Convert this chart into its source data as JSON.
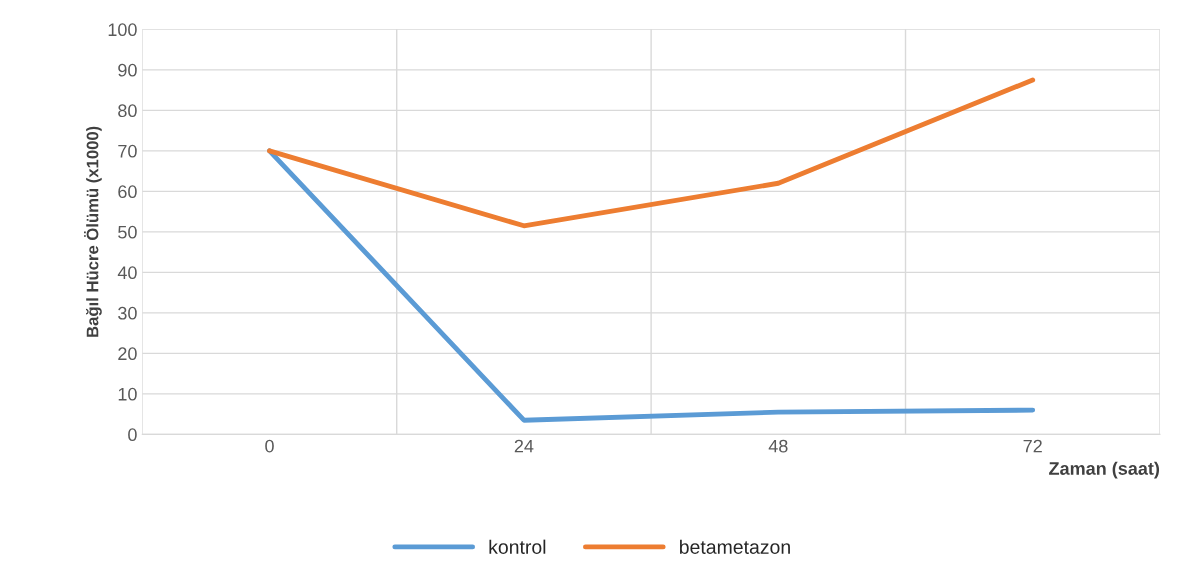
{
  "chart_data": {
    "type": "line",
    "ylabel": "Bağıl Hücre Ölümü (x1000)",
    "xlabel": "Zaman (saat)",
    "categories": [
      "0",
      "24",
      "48",
      "72"
    ],
    "series": [
      {
        "name": "kontrol",
        "color": "#5b9bd5",
        "values": [
          70,
          3.5,
          5.5,
          6
        ]
      },
      {
        "name": "betametazon",
        "color": "#ed7d31",
        "values": [
          70,
          51.5,
          62,
          87.5
        ]
      }
    ],
    "ylim": [
      0,
      100
    ],
    "yticks": [
      0,
      10,
      20,
      30,
      40,
      50,
      60,
      70,
      80,
      90,
      100
    ],
    "grid": true,
    "legend": "bottom",
    "marker": "none",
    "line_style": "solid"
  }
}
